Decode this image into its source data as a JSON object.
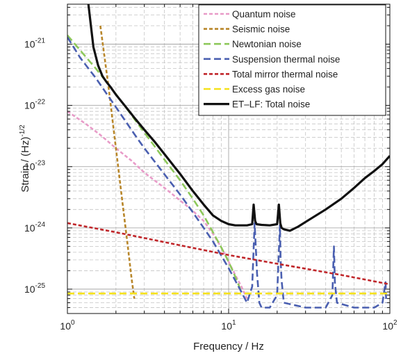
{
  "chart_data": {
    "type": "line",
    "title": "",
    "xlabel": "Frequency / Hz",
    "ylabel": "Strain / (Hz)^-1/2",
    "ylabel_parts": {
      "main": "Strain / (Hz)",
      "sup": "-1/2"
    },
    "x_scale": "log",
    "y_scale": "log",
    "xlim": [
      1,
      100
    ],
    "ylim": [
      4e-26,
      4.5e-21
    ],
    "grid": true,
    "legend_position": "top-right",
    "x_ticks": [
      {
        "value": 1,
        "base": "10",
        "exp": "0"
      },
      {
        "value": 10,
        "base": "10",
        "exp": "1"
      },
      {
        "value": 100,
        "base": "10",
        "exp": "2"
      }
    ],
    "y_ticks": [
      {
        "value": 1e-25,
        "base": "10",
        "exp": "-25"
      },
      {
        "value": 1e-24,
        "base": "10",
        "exp": "-24"
      },
      {
        "value": 1e-23,
        "base": "10",
        "exp": "-23"
      },
      {
        "value": 1e-22,
        "base": "10",
        "exp": "-22"
      },
      {
        "value": 1e-21,
        "base": "10",
        "exp": "-21"
      }
    ],
    "series": [
      {
        "name": "Quantum noise",
        "color": "#e89bc8",
        "dash": "dotted",
        "x": [
          1,
          1.3,
          1.6,
          2,
          2.5,
          3,
          4,
          5,
          6,
          7,
          8,
          9,
          10,
          11,
          12,
          13
        ],
        "y": [
          8e-23,
          5e-23,
          3.3e-23,
          2e-23,
          1.25e-23,
          8e-24,
          4.5e-24,
          2.8e-24,
          1.9e-24,
          1.3e-24,
          8e-25,
          4.8e-25,
          2.8e-25,
          1.7e-25,
          1.1e-25,
          7e-26
        ]
      },
      {
        "name": "Seismic noise",
        "color": "#b8862a",
        "dash": "dotted",
        "x": [
          1.6,
          1.8,
          2,
          2.2,
          2.35,
          2.5,
          2.6
        ],
        "y": [
          2e-21,
          2e-22,
          2e-23,
          2.5e-24,
          6e-25,
          1.5e-25,
          7e-26
        ]
      },
      {
        "name": "Newtonian noise",
        "color": "#8dc85a",
        "dash": "dashed",
        "x": [
          1,
          1.25,
          1.5,
          1.8,
          2.2,
          2.6,
          3,
          3.5,
          4,
          5,
          6,
          7,
          8,
          9,
          10,
          11,
          12
        ],
        "y": [
          1.4e-21,
          7e-22,
          4e-22,
          2.2e-22,
          1.1e-22,
          6e-23,
          3.6e-23,
          2.1e-23,
          1.3e-23,
          6e-24,
          3e-24,
          1.6e-24,
          8.5e-25,
          4.8e-25,
          2.8e-25,
          1.6e-25,
          9e-26
        ]
      },
      {
        "name": "Suspension thermal noise",
        "color": "#4a5fb0",
        "dash": "dashed",
        "x": [
          1,
          1.2,
          1.5,
          1.8,
          2.2,
          2.6,
          3,
          4,
          5,
          6,
          7,
          8,
          10,
          12,
          13,
          14,
          14.5,
          15,
          15.5,
          16,
          18,
          20,
          20.8,
          21,
          21.3,
          22,
          30,
          40,
          44,
          45,
          45.6,
          47,
          60,
          80,
          90,
          94,
          95
        ],
        "y": [
          1.3e-21,
          6e-22,
          2.8e-22,
          1.4e-22,
          6.5e-23,
          3.4e-23,
          2e-23,
          7.5e-24,
          3.5e-24,
          1.8e-24,
          1e-24,
          6e-25,
          2.2e-25,
          9e-26,
          6e-26,
          1.1e-25,
          1.2e-24,
          1.8e-25,
          6e-26,
          5e-26,
          5e-26,
          8e-26,
          1.1e-24,
          3e-25,
          1.4e-25,
          6e-26,
          5e-26,
          5e-26,
          8e-26,
          5e-25,
          1.3e-25,
          6e-26,
          5e-26,
          5e-26,
          6e-26,
          1.3e-25,
          6e-26
        ]
      },
      {
        "name": "Total mirror thermal noise",
        "color": "#c0262a",
        "dash": "dotted",
        "x": [
          1,
          2,
          5,
          10,
          20,
          50,
          100
        ],
        "y": [
          1.2e-24,
          8.5e-25,
          5.2e-25,
          3.6e-25,
          2.6e-25,
          1.7e-25,
          1.2e-25
        ]
      },
      {
        "name": "Excess gas noise",
        "color": "#f5e11a",
        "dash": "dashed",
        "x": [
          1,
          100
        ],
        "y": [
          8.5e-26,
          8.5e-26
        ]
      },
      {
        "name": "ET–LF: Total noise",
        "color": "#111111",
        "dash": "solid",
        "x": [
          1.35,
          1.45,
          1.55,
          1.65,
          1.75,
          1.85,
          2,
          2.3,
          2.6,
          3,
          3.5,
          4,
          5,
          6,
          7,
          8,
          9,
          10,
          11,
          12,
          13,
          14,
          14.3,
          14.6,
          14.9,
          16,
          18,
          20,
          20.5,
          20.9,
          21.3,
          22,
          24,
          27,
          30,
          40,
          50,
          60,
          70,
          80,
          90,
          100
        ],
        "y": [
          4.5e-21,
          9e-22,
          4.5e-22,
          3e-22,
          2.4e-22,
          2e-22,
          1.5e-22,
          9.5e-23,
          6.3e-23,
          4e-23,
          2.5e-23,
          1.6e-23,
          7.6e-24,
          4e-24,
          2.4e-24,
          1.6e-24,
          1.3e-24,
          1.15e-24,
          1.1e-24,
          1.1e-24,
          1.1e-24,
          1.15e-24,
          2.4e-24,
          1.3e-24,
          1.15e-24,
          1.12e-24,
          1.1e-24,
          1.15e-24,
          2.4e-24,
          1.2e-24,
          1e-24,
          9.5e-25,
          9e-25,
          1.05e-24,
          1.25e-24,
          2e-24,
          3e-24,
          4.5e-24,
          6.5e-24,
          8.5e-24,
          1.1e-23,
          1.5e-23
        ]
      }
    ]
  }
}
